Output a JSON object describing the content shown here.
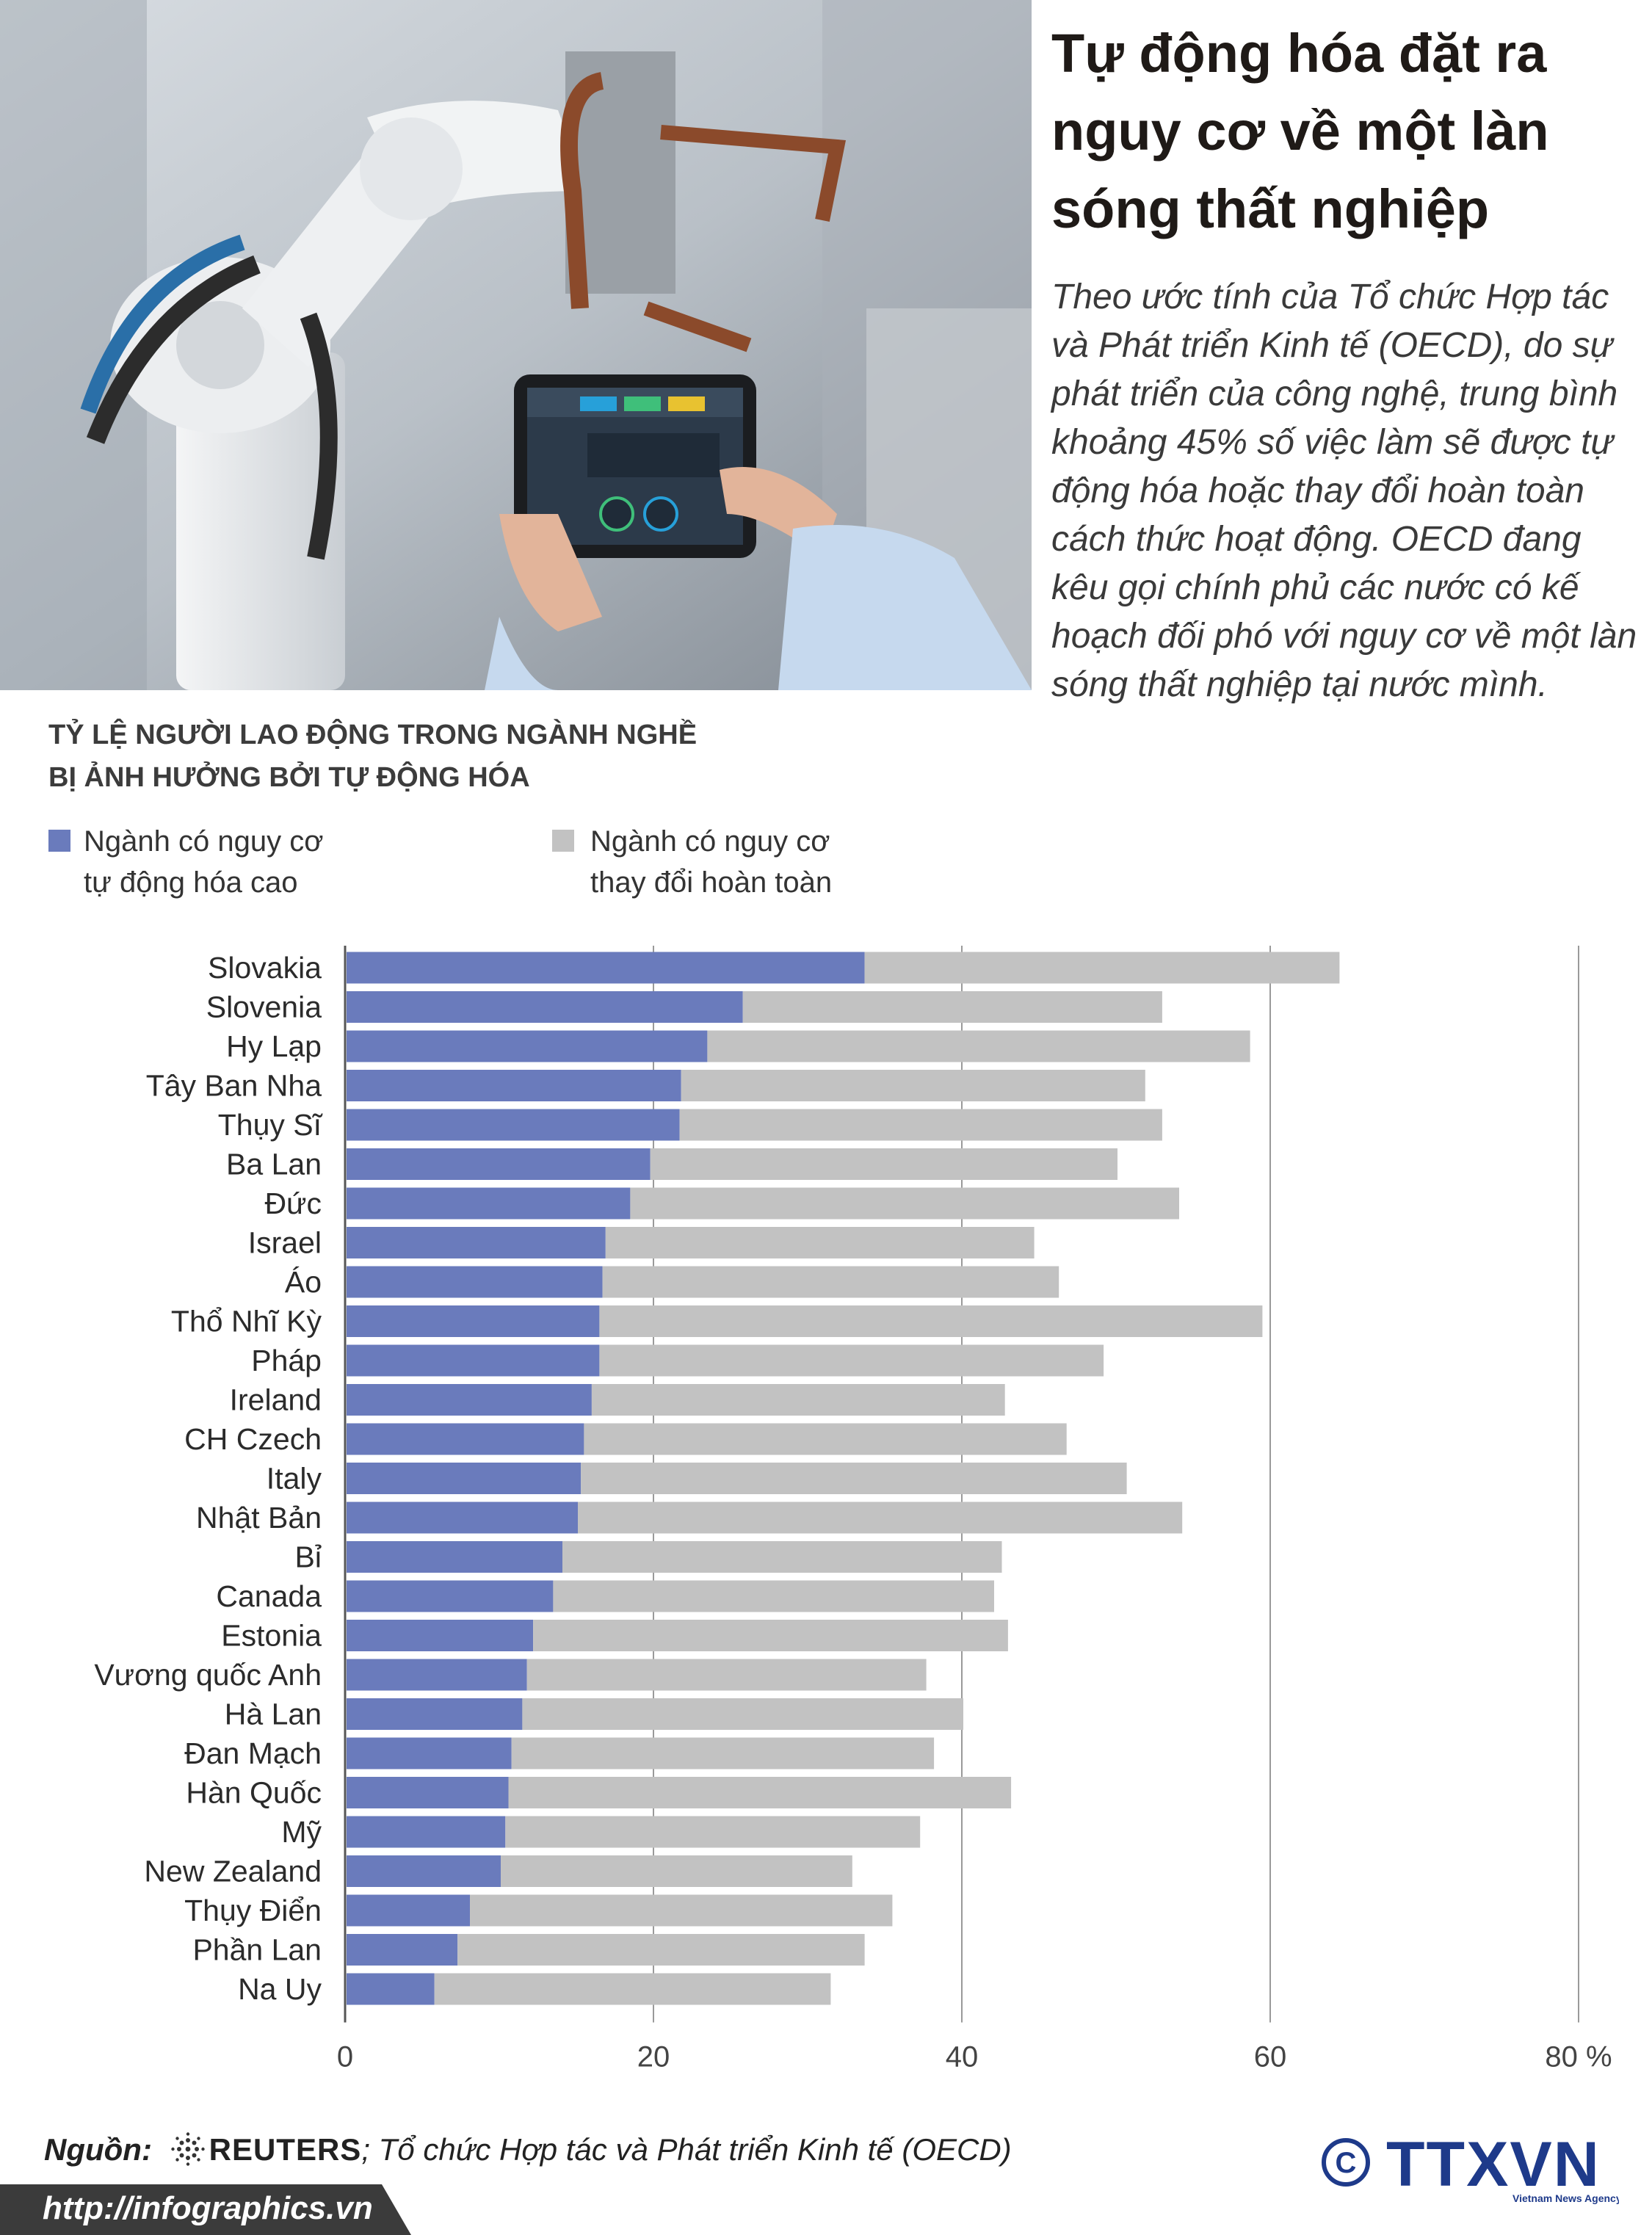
{
  "header": {
    "title": "Tự động hóa đặt ra nguy cơ về một làn sóng thất nghiệp",
    "intro": "Theo ước tính của Tổ chức Hợp tác và Phát triển Kinh tế (OECD), do sự phát triển của công nghệ, trung bình khoảng 45% số việc làm sẽ được tự động hóa hoặc thay đổi hoàn toàn cách thức hoạt động. OECD đang kêu gọi chính phủ các nước có kế hoạch đối phó với nguy cơ về một làn sóng thất nghiệp tại nước mình."
  },
  "chart_title_line1": "TỶ LỆ NGƯỜI LAO ĐỘNG TRONG NGÀNH NGHỀ",
  "chart_title_line2": "BỊ ẢNH HƯỞNG BỞI TỰ ĐỘNG HÓA",
  "legend": {
    "high_line1": "Ngành có nguy cơ",
    "high_line2": "tự động hóa cao",
    "change_line1": "Ngành có nguy cơ",
    "change_line2": "thay đổi hoàn toàn"
  },
  "colors": {
    "high_risk": "#6a7bbc",
    "significant_change": "#c2c2c2",
    "footer_bar": "#3b3b3b",
    "logo_blue": "#1e3a8a"
  },
  "chart_data": {
    "type": "bar",
    "orientation": "horizontal",
    "stacked": true,
    "title": "",
    "xlabel": "",
    "ylabel": "",
    "xlim": [
      0,
      80
    ],
    "x_ticks": [
      "0",
      "20",
      "40",
      "60",
      "80 %"
    ],
    "x_tick_values": [
      0,
      20,
      40,
      60,
      80
    ],
    "grid": "vertical",
    "legend_position": "top-left",
    "categories": [
      "Slovakia",
      "Slovenia",
      "Hy Lạp",
      "Tây Ban Nha",
      "Thụy Sĩ",
      "Ba Lan",
      "Đức",
      "Israel",
      "Áo",
      "Thổ Nhĩ Kỳ",
      "Pháp",
      "Ireland",
      "CH Czech",
      "Italy",
      "Nhật Bản",
      "Bỉ",
      "Canada",
      "Estonia",
      "Vương quốc Anh",
      "Hà Lan",
      "Đan Mạch",
      "Hàn Quốc",
      "Mỹ",
      "New Zealand",
      "Thụy Điển",
      "Phần Lan",
      "Na Uy"
    ],
    "series": [
      {
        "name": "Ngành có nguy cơ tự động hóa cao",
        "values": [
          33.6,
          25.7,
          23.4,
          21.7,
          21.6,
          19.7,
          18.4,
          16.8,
          16.6,
          16.4,
          16.4,
          15.9,
          15.4,
          15.2,
          15.0,
          14.0,
          13.4,
          12.1,
          11.7,
          11.4,
          10.7,
          10.5,
          10.3,
          10.0,
          8.0,
          7.2,
          5.7
        ]
      },
      {
        "name": "Ngành có nguy cơ thay đổi hoàn toàn",
        "values": [
          30.8,
          27.2,
          35.2,
          30.1,
          31.3,
          30.3,
          35.6,
          27.8,
          29.6,
          43.0,
          32.7,
          26.8,
          31.3,
          35.4,
          39.2,
          28.5,
          28.6,
          30.8,
          25.9,
          28.6,
          27.4,
          32.6,
          26.9,
          22.8,
          27.4,
          26.4,
          25.7
        ]
      }
    ]
  },
  "source": {
    "lead": "Nguồn:",
    "reuters": "REUTERS",
    "rest": "; Tổ chức Hợp tác và Phát triển Kinh tế (OECD)"
  },
  "footer": {
    "url": "http://infographics.vn"
  },
  "logo": {
    "text": "TTXVN",
    "subtext": "Vietnam News Agency"
  }
}
